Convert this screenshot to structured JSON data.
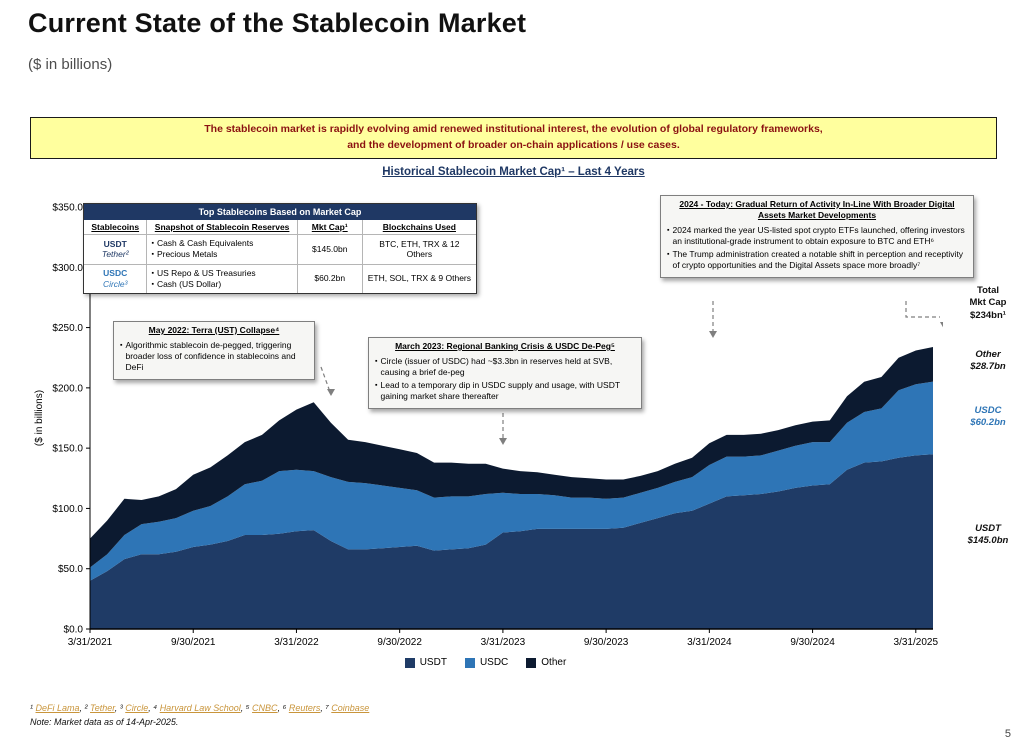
{
  "slide": {
    "title": "Current State of the Stablecoin Market",
    "subtitle": "($ in billions)",
    "note": "Note: Market data as of 14-Apr-2025.",
    "page_number": "5"
  },
  "banner": {
    "line1": "The stablecoin market is rapidly evolving amid renewed institutional interest, the evolution of global regulatory frameworks,",
    "line2": "and the development of broader on-chain applications / use cases."
  },
  "colors": {
    "navy": "#1f3864",
    "usdt": "#1f3b66",
    "usdc": "#2e75b6",
    "other": "#0c1a30",
    "banner_bg": "#ffff9e",
    "banner_text": "#8b1212",
    "footnote_link": "#c9953b"
  },
  "stablecoin_table": {
    "title": "Top Stablecoins Based on Market Cap",
    "headers": [
      "Stablecoins",
      "Snapshot of Stablecoin Reserves",
      "Mkt Cap¹",
      "Blockchains Used"
    ],
    "rows": [
      {
        "name": "USDT",
        "issuer": "Tether²",
        "reserves": [
          "Cash & Cash Equivalents",
          "Precious Metals"
        ],
        "mkt_cap": "$145.0bn",
        "blockchains": "BTC, ETH, TRX & 12 Others"
      },
      {
        "name": "USDC",
        "issuer": "Circle³",
        "reserves": [
          "US Repo & US Treasuries",
          "Cash (US Dollar)"
        ],
        "mkt_cap": "$60.2bn",
        "blockchains": "ETH, SOL, TRX & 9 Others"
      }
    ]
  },
  "annotations": [
    {
      "title": "May 2022: Terra (UST) Collapse⁴",
      "bullets": [
        "Algorithmic stablecoin de-pegged, triggering broader loss of confidence in stablecoins and DeFi"
      ]
    },
    {
      "title": "March 2023: Regional Banking Crisis & USDC De-Peg⁵",
      "bullets": [
        "Circle (issuer of USDC) had ~$3.3bn in reserves held at SVB, causing a brief de-peg",
        "Lead to a temporary dip in USDC supply and usage, with USDT gaining market share thereafter"
      ]
    },
    {
      "title": "2024 - Today: Gradual Return of Activity In-Line With Broader Digital Assets Market Developments",
      "bullets": [
        "2024 marked the year US-listed spot crypto ETFs launched, offering investors an institutional-grade instrument to obtain exposure to BTC and ETH⁶",
        "The Trump administration created a notable shift in perception and receptivity of crypto opportunities and the Digital Assets space more broadly⁷"
      ]
    }
  ],
  "right_labels": {
    "total": "Total\nMkt Cap\n$234bn¹",
    "other": "Other\n$28.7bn",
    "usdc": "USDC\n$60.2bn",
    "usdt": "USDT\n$145.0bn"
  },
  "footnotes": [
    {
      "sup": "¹",
      "label": "DeFi Lama"
    },
    {
      "sup": "²",
      "label": "Tether"
    },
    {
      "sup": "³",
      "label": "Circle"
    },
    {
      "sup": "⁴",
      "label": "Harvard Law School"
    },
    {
      "sup": "⁵",
      "label": "CNBC"
    },
    {
      "sup": "⁶",
      "label": "Reuters"
    },
    {
      "sup": "⁷",
      "label": "Coinbase"
    }
  ],
  "chart_data": {
    "type": "area",
    "stacked": true,
    "title": "Historical Stablecoin Market Cap¹ – Last 4 Years",
    "ylabel": "($ in billions)",
    "ylim": [
      0,
      350
    ],
    "ytick_step": 50,
    "grid": false,
    "legend_position": "bottom",
    "x_start": "3/31/2021",
    "x_end": "4/14/2025",
    "x_frequency": "monthly",
    "x_tick_labels": [
      "3/31/2021",
      "9/30/2021",
      "3/31/2022",
      "9/30/2022",
      "3/31/2023",
      "9/30/2023",
      "3/31/2024",
      "9/30/2024",
      "3/31/2025"
    ],
    "x_tick_indices": [
      0,
      6,
      12,
      18,
      24,
      30,
      36,
      42,
      48
    ],
    "series": [
      {
        "name": "USDT",
        "color": "#1f3b66",
        "values": [
          40,
          48,
          58,
          62,
          62,
          64,
          68,
          70,
          73,
          78,
          78,
          79,
          81,
          82,
          73,
          66,
          66,
          67,
          68,
          69,
          65,
          66,
          67,
          70,
          80,
          81,
          83,
          83,
          83,
          83,
          83,
          84,
          88,
          92,
          96,
          98,
          104,
          110,
          111,
          112,
          114,
          117,
          119,
          120,
          132,
          138,
          139,
          142,
          144,
          145
        ]
      },
      {
        "name": "USDC",
        "color": "#2e75b6",
        "values": [
          11,
          14,
          20,
          25,
          27,
          28,
          30,
          32,
          37,
          42,
          45,
          52,
          51,
          49,
          53,
          56,
          55,
          52,
          49,
          46,
          44,
          44,
          43,
          42,
          33,
          31,
          29,
          28,
          26,
          26,
          25,
          25,
          25,
          25,
          26,
          28,
          32,
          33,
          32,
          32,
          34,
          35,
          36,
          35,
          39,
          42,
          44,
          56,
          59,
          60.2
        ]
      },
      {
        "name": "Other",
        "color": "#0c1a30",
        "values": [
          24,
          28,
          30,
          20,
          21,
          24,
          30,
          32,
          34,
          35,
          38,
          42,
          50,
          57,
          45,
          35,
          34,
          33,
          32,
          31,
          29,
          28,
          27,
          25,
          20,
          19,
          18,
          17,
          17,
          16,
          16,
          15,
          14,
          14,
          15,
          16,
          18,
          18,
          18,
          18,
          17,
          17,
          17,
          18,
          22,
          25,
          26,
          27,
          28,
          28.7
        ]
      }
    ],
    "end_values": {
      "total": 234,
      "usdt": 145.0,
      "usdc": 60.2,
      "other": 28.7
    }
  }
}
